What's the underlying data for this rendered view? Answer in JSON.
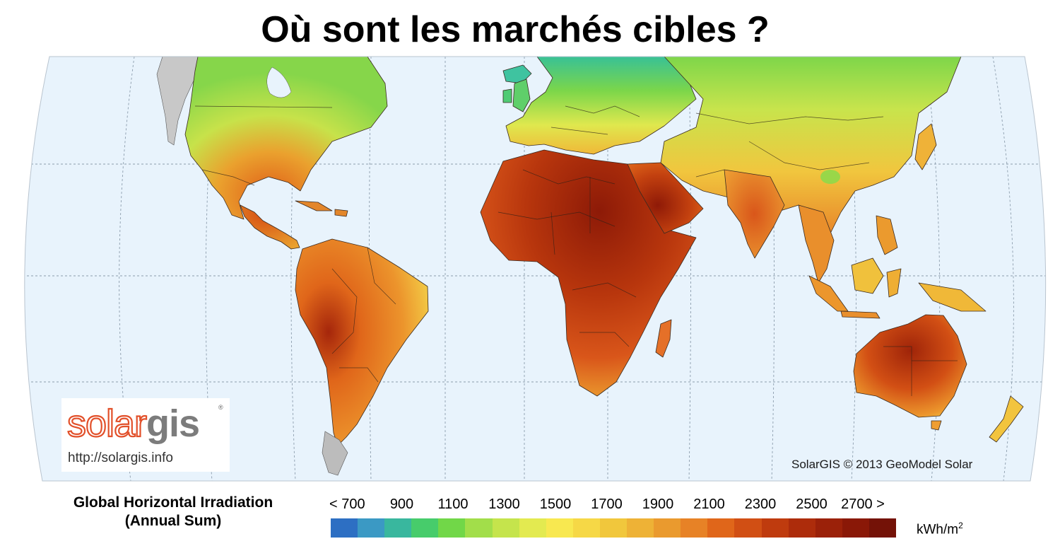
{
  "title": "Où sont les marchés cibles ?",
  "logo": {
    "brand_part1": "solar",
    "brand_part2": "gis",
    "url": "http://solargis.info"
  },
  "copyright": "SolarGIS © 2013 GeoModel Solar",
  "legend": {
    "title_line1": "Global Horizontal Irradiation",
    "title_line2": "(Annual Sum)",
    "unit_base": "kWh/m",
    "unit_exponent": "2",
    "tick_labels": [
      "< 700",
      "900",
      "1100",
      "1300",
      "1500",
      "1700",
      "1900",
      "2100",
      "2300",
      "2500",
      "2700 >"
    ],
    "colors": [
      "#2d6fc3",
      "#3b99c4",
      "#39b79e",
      "#47cc6b",
      "#71d748",
      "#a2de4a",
      "#c5e44c",
      "#e3ea50",
      "#f8e850",
      "#f6d846",
      "#f1c73c",
      "#eeb236",
      "#ea9a2e",
      "#e78226",
      "#e0661a",
      "#d14f14",
      "#bf3b0e",
      "#ad2c0b",
      "#9b2109",
      "#8a1807",
      "#741207"
    ]
  },
  "map": {
    "ocean_color": "#e8f3fc",
    "graticule_color": "#8b9cac"
  }
}
